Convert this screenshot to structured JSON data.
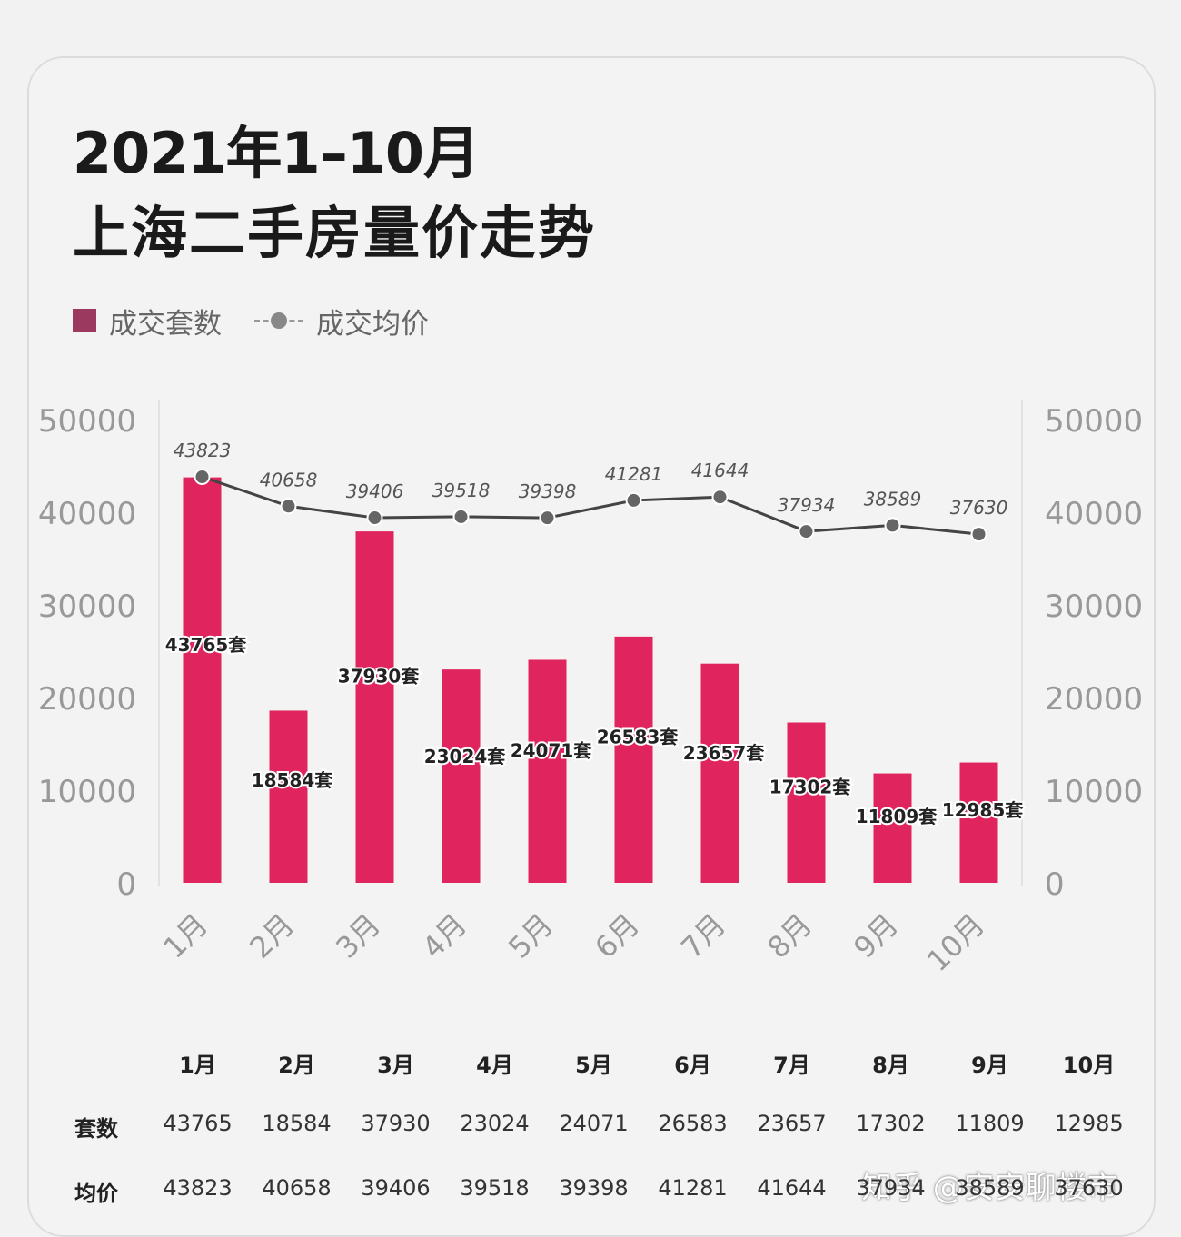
{
  "title_line1": "2021年1–10月",
  "title_line2": "上海二手房量价走势",
  "legend": {
    "bars": "成交套数",
    "line": "成交均价"
  },
  "colors": {
    "bar": "#e0245e",
    "bar_dark": "#c81a4e",
    "line": "#444444",
    "point": "#666666"
  },
  "chart_data": {
    "type": "bar",
    "categories": [
      "1月",
      "2月",
      "3月",
      "4月",
      "5月",
      "6月",
      "7月",
      "8月",
      "9月",
      "10月"
    ],
    "series": [
      {
        "name": "成交套数",
        "type": "bar",
        "axis": "left",
        "values": [
          43765,
          18584,
          37930,
          23024,
          24071,
          26583,
          23657,
          17302,
          11809,
          12985
        ],
        "labels": [
          "43765套",
          "18584套",
          "37930套",
          "23024套",
          "24071套",
          "26583套",
          "23657套",
          "17302套",
          "11809套",
          "12985套"
        ]
      },
      {
        "name": "成交均价",
        "type": "line",
        "axis": "right",
        "values": [
          43823,
          40658,
          39406,
          39518,
          39398,
          41281,
          41644,
          37934,
          38589,
          37630
        ],
        "labels": [
          "43823",
          "40658",
          "39406",
          "39518",
          "39398",
          "41281",
          "41644",
          "37934",
          "38589",
          "37630"
        ]
      }
    ],
    "y_left": {
      "ylim": [
        0,
        50000
      ],
      "ticks": [
        "0",
        "10000",
        "20000",
        "30000",
        "40000",
        "50000"
      ]
    },
    "y_right": {
      "ylim": [
        0,
        50000
      ],
      "ticks": [
        "0",
        "10000",
        "20000",
        "30000",
        "40000",
        "50000"
      ]
    },
    "legend_position": "top-left",
    "grid": false
  },
  "table": {
    "headers": [
      "1月",
      "2月",
      "3月",
      "4月",
      "5月",
      "6月",
      "7月",
      "8月",
      "9月",
      "10月"
    ],
    "rows": [
      {
        "label": "套数",
        "values": [
          "43765",
          "18584",
          "37930",
          "23024",
          "24071",
          "26583",
          "23657",
          "17302",
          "11809",
          "12985"
        ]
      },
      {
        "label": "均价",
        "values": [
          "43823",
          "40658",
          "39406",
          "39518",
          "39398",
          "41281",
          "41644",
          "37934",
          "38589",
          "37630"
        ]
      }
    ]
  },
  "watermark": "知乎 @安安聊楼市"
}
